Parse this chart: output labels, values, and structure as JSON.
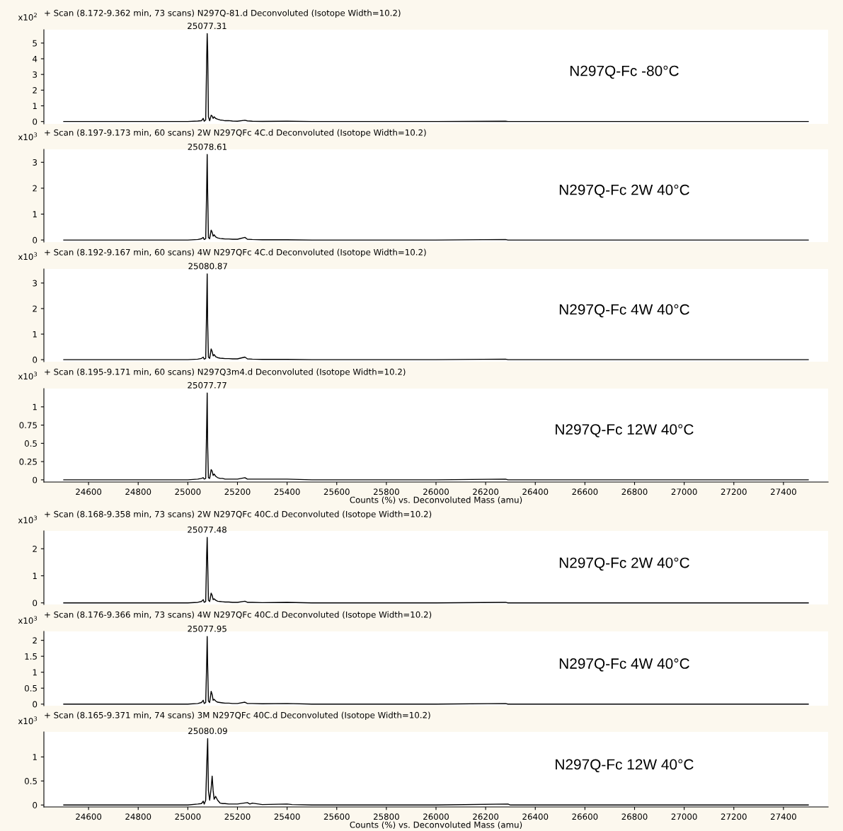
{
  "chart_data": [
    {
      "type": "line",
      "title": "+ Scan (8.172-9.362 min, 73 scans) N297Q-81.d Deconvoluted (Isotope Width=10.2)",
      "ylabel": "x10$^{2}$",
      "color": "#000000",
      "xlim": [
        24420,
        27580
      ],
      "ylim": [
        -0.15,
        5.85
      ],
      "yticks": [
        0,
        1,
        2,
        3,
        4,
        5
      ],
      "tick_labels": "y",
      "x": [
        24500,
        25000,
        25040,
        25055,
        25062,
        25066,
        25072,
        25076,
        25078,
        25080,
        25083,
        25088,
        25094,
        25098,
        25102,
        25106,
        25112,
        25120,
        25130,
        25140,
        25150,
        25165,
        25180,
        25200,
        25230,
        25240,
        25260,
        25300,
        25400,
        25500,
        26000,
        26280,
        26290,
        27500
      ],
      "values": [
        0,
        0,
        0.03,
        0.05,
        0.2,
        0.02,
        0.1,
        4.0,
        5.6,
        4.5,
        0.3,
        0.05,
        0.4,
        0.35,
        0.2,
        0.3,
        0.2,
        0.15,
        0.1,
        0.08,
        0.05,
        0.06,
        0.03,
        0.02,
        0.08,
        0.04,
        0.02,
        0.01,
        0.02,
        0,
        0,
        0.02,
        0,
        0
      ],
      "annotations": [
        {
          "text": "25077.31",
          "x": 25077.31,
          "y": 5.6
        },
        "N297Q-Fc -80°C"
      ]
    },
    {
      "type": "line",
      "title": "+ Scan (8.197-9.173 min, 60 scans) 2W N297QFc 4C.d Deconvoluted (Isotope Width=10.2)",
      "ylabel": "x10$^{3}$",
      "color": "#000000",
      "xlim": [
        24420,
        27580
      ],
      "ylim": [
        -0.08,
        3.5
      ],
      "yticks": [
        0,
        1,
        2,
        3
      ],
      "tick_labels": "y",
      "x": [
        24500,
        25000,
        25040,
        25055,
        25062,
        25066,
        25072,
        25076,
        25078,
        25080,
        25083,
        25088,
        25094,
        25098,
        25102,
        25106,
        25112,
        25120,
        25130,
        25140,
        25150,
        25165,
        25180,
        25200,
        25230,
        25240,
        25260,
        25300,
        25400,
        25500,
        26000,
        26280,
        26290,
        27500
      ],
      "values": [
        0,
        0,
        0.02,
        0.05,
        0.1,
        0.02,
        0.05,
        2.0,
        3.3,
        1.8,
        0.1,
        0.05,
        0.38,
        0.3,
        0.15,
        0.2,
        0.12,
        0.08,
        0.06,
        0.05,
        0.04,
        0.04,
        0.03,
        0.03,
        0.1,
        0.03,
        0.02,
        0.01,
        0.01,
        0,
        0,
        0.02,
        0,
        0
      ],
      "annotations": [
        {
          "text": "25078.61",
          "x": 25078.61,
          "y": 3.3
        },
        "N297Q-Fc 2W 40°C"
      ]
    },
    {
      "type": "line",
      "title": "+ Scan (8.192-9.167 min, 60 scans) 4W N297QFc 4C.d Deconvoluted (Isotope Width=10.2)",
      "ylabel": "x10$^{3}$",
      "color": "#000000",
      "xlim": [
        24420,
        27580
      ],
      "ylim": [
        -0.08,
        3.55
      ],
      "yticks": [
        0,
        1,
        2,
        3
      ],
      "tick_labels": "y",
      "x": [
        24500,
        25000,
        25040,
        25055,
        25062,
        25066,
        25072,
        25076,
        25078,
        25080,
        25083,
        25088,
        25094,
        25098,
        25102,
        25106,
        25112,
        25120,
        25130,
        25140,
        25150,
        25165,
        25180,
        25200,
        25230,
        25240,
        25260,
        25300,
        25400,
        25500,
        26000,
        26280,
        26290,
        27500
      ],
      "values": [
        0,
        0,
        0.02,
        0.05,
        0.1,
        0.02,
        0.05,
        2.1,
        3.36,
        1.4,
        0.1,
        0.05,
        0.42,
        0.32,
        0.15,
        0.2,
        0.12,
        0.08,
        0.06,
        0.05,
        0.04,
        0.04,
        0.03,
        0.03,
        0.1,
        0.03,
        0.02,
        0.01,
        0.01,
        0,
        0,
        0.02,
        0,
        0
      ],
      "annotations": [
        {
          "text": "25080.87",
          "x": 25080.87,
          "y": 3.36
        },
        "N297Q-Fc 4W 40°C"
      ]
    },
    {
      "type": "line",
      "title": "+ Scan (8.195-9.171 min, 60 scans) N297Q3m4.d Deconvoluted (Isotope Width=10.2)",
      "xlabel": "Counts (%) vs. Deconvoluted Mass (amu)",
      "ylabel": "x10$^{3}$",
      "color": "#000000",
      "xlim": [
        24420,
        27580
      ],
      "ylim": [
        -0.03,
        1.25
      ],
      "xticks": [
        24600,
        24800,
        25000,
        25200,
        25400,
        25600,
        25800,
        26000,
        26200,
        26400,
        26600,
        26800,
        27000,
        27200,
        27400
      ],
      "yticks": [
        0,
        0.25,
        0.5,
        0.75,
        1
      ],
      "x": [
        24500,
        25000,
        25040,
        25055,
        25062,
        25066,
        25072,
        25076,
        25078,
        25080,
        25083,
        25088,
        25094,
        25098,
        25102,
        25106,
        25112,
        25120,
        25130,
        25140,
        25150,
        25165,
        25180,
        25200,
        25230,
        25240,
        25260,
        25300,
        25400,
        25500,
        26000,
        26280,
        26290,
        27500
      ],
      "values": [
        0,
        0,
        0.01,
        0.02,
        0.03,
        0.01,
        0.02,
        0.75,
        1.19,
        0.45,
        0.03,
        0.02,
        0.14,
        0.12,
        0.06,
        0.08,
        0.05,
        0.03,
        0.02,
        0.02,
        0.01,
        0.01,
        0.01,
        0.01,
        0.03,
        0.01,
        0.01,
        0.01,
        0.01,
        0,
        0,
        0.01,
        0,
        0
      ],
      "annotations": [
        {
          "text": "25077.77",
          "x": 25077.77,
          "y": 1.19
        },
        "N297Q-Fc 12W 40°C"
      ]
    },
    {
      "type": "line",
      "title": "+ Scan (8.168-9.358 min, 73 scans) 2W N297QFc 40C.d Deconvoluted (Isotope Width=10.2)",
      "ylabel": "x10$^{3}$",
      "color": "#000000",
      "xlim": [
        24420,
        27580
      ],
      "ylim": [
        -0.06,
        2.66
      ],
      "yticks": [
        0,
        1,
        2
      ],
      "tick_labels": "y",
      "x": [
        24500,
        25000,
        25040,
        25055,
        25062,
        25066,
        25072,
        25076,
        25078,
        25080,
        25083,
        25088,
        25094,
        25098,
        25102,
        25106,
        25112,
        25120,
        25130,
        25140,
        25150,
        25165,
        25180,
        25200,
        25230,
        25240,
        25260,
        25300,
        25400,
        25500,
        26000,
        26280,
        26290,
        27500
      ],
      "values": [
        0,
        0,
        0.02,
        0.05,
        0.12,
        0.02,
        0.05,
        1.8,
        2.42,
        1.5,
        0.1,
        0.05,
        0.36,
        0.28,
        0.12,
        0.15,
        0.1,
        0.06,
        0.05,
        0.04,
        0.03,
        0.03,
        0.02,
        0.02,
        0.06,
        0.02,
        0.02,
        0.01,
        0.02,
        0,
        0,
        0.02,
        0,
        0
      ],
      "annotations": [
        {
          "text": "25077.48",
          "x": 25077.48,
          "y": 2.42
        },
        "N297Q-Fc 2W 40°C"
      ]
    },
    {
      "type": "line",
      "title": "+ Scan (8.176-9.366 min, 73 scans) 4W N297QFc 40C.d Deconvoluted (Isotope Width=10.2)",
      "ylabel": "x10$^{3}$",
      "color": "#000000",
      "xlim": [
        24420,
        27580
      ],
      "ylim": [
        -0.05,
        2.28
      ],
      "yticks": [
        0,
        0.5,
        1,
        1.5,
        2
      ],
      "tick_labels": "y",
      "x": [
        24500,
        25000,
        25040,
        25055,
        25062,
        25066,
        25072,
        25076,
        25078,
        25080,
        25083,
        25088,
        25094,
        25098,
        25102,
        25106,
        25112,
        25120,
        25130,
        25140,
        25150,
        25165,
        25180,
        25200,
        25230,
        25240,
        25260,
        25300,
        25400,
        25500,
        26000,
        26280,
        26290,
        27500
      ],
      "values": [
        0,
        0,
        0.02,
        0.05,
        0.12,
        0.02,
        0.05,
        1.3,
        2.12,
        1.2,
        0.1,
        0.05,
        0.4,
        0.3,
        0.12,
        0.15,
        0.1,
        0.06,
        0.05,
        0.04,
        0.03,
        0.03,
        0.02,
        0.02,
        0.06,
        0.02,
        0.02,
        0.01,
        0.02,
        0,
        0,
        0.02,
        0,
        0
      ],
      "annotations": [
        {
          "text": "25077.95",
          "x": 25077.95,
          "y": 2.12
        },
        "N297Q-Fc 4W 40°C"
      ]
    },
    {
      "type": "line",
      "title": "+ Scan (8.165-9.371 min, 74 scans) 3M N297QFc 40C.d Deconvoluted (Isotope Width=10.2)",
      "xlabel": "Counts (%) vs. Deconvoluted Mass (amu)",
      "ylabel": "x10$^{3}$",
      "color": "#000000",
      "xlim": [
        24420,
        27580
      ],
      "ylim": [
        -0.04,
        1.52
      ],
      "xticks": [
        24600,
        24800,
        25000,
        25200,
        25400,
        25600,
        25800,
        26000,
        26200,
        26400,
        26600,
        26800,
        27000,
        27200,
        27400
      ],
      "yticks": [
        0,
        0.5,
        1
      ],
      "x": [
        24500,
        25000,
        25040,
        25055,
        25062,
        25066,
        25072,
        25076,
        25080,
        25083,
        25088,
        25094,
        25098,
        25102,
        25106,
        25112,
        25120,
        25130,
        25140,
        25150,
        25165,
        25180,
        25200,
        25240,
        25250,
        25260,
        25300,
        25400,
        25420,
        25500,
        26000,
        26290,
        26300,
        27500
      ],
      "values": [
        0,
        0,
        0.02,
        0.03,
        0.08,
        0.02,
        0.1,
        0.8,
        1.38,
        0.3,
        0.1,
        0.35,
        0.6,
        0.3,
        0.12,
        0.18,
        0.1,
        0.04,
        0.03,
        0.03,
        0.02,
        0.02,
        0.02,
        0.05,
        0.02,
        0.04,
        0.01,
        0.02,
        0.01,
        0,
        0,
        0.02,
        0,
        0
      ],
      "annotations": [
        {
          "text": "25080.09",
          "x": 25080.09,
          "y": 1.38
        },
        "N297Q-Fc 12W 40°C"
      ]
    }
  ]
}
